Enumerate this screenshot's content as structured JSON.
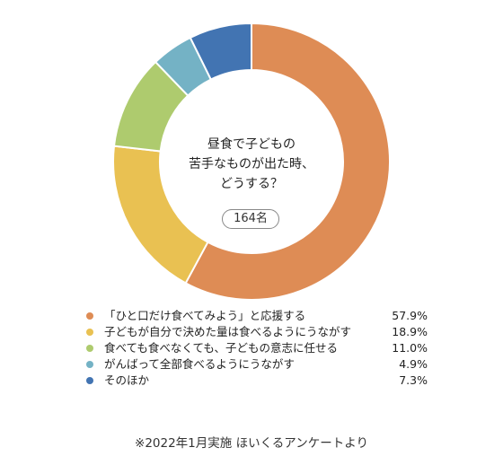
{
  "chart_data": {
    "type": "pie",
    "center_text": [
      "昼食で子どもの",
      "苦手なものが出た時、",
      "どうする？"
    ],
    "count_label": "164名",
    "series": [
      {
        "name": "「ひと口だけ食べてみよう」と応援する",
        "value": 57.9,
        "label": "57.9%",
        "color": "#DE8C55"
      },
      {
        "name": "子どもが自分で決めた量は食べるようにうながす",
        "value": 18.9,
        "label": "18.9%",
        "color": "#E9C152"
      },
      {
        "name": "食べても食べなくても、子どもの意志に任せる",
        "value": 11.0,
        "label": "11.0%",
        "color": "#AECB6E"
      },
      {
        "name": "がんばって全部食べるようにうながす",
        "value": 4.9,
        "label": "4.9%",
        "color": "#74B2C5"
      },
      {
        "name": "そのほか",
        "value": 7.3,
        "label": "7.3%",
        "color": "#4274B2"
      }
    ]
  },
  "footnote": "※2022年1月実施 ほいくるアンケートより"
}
